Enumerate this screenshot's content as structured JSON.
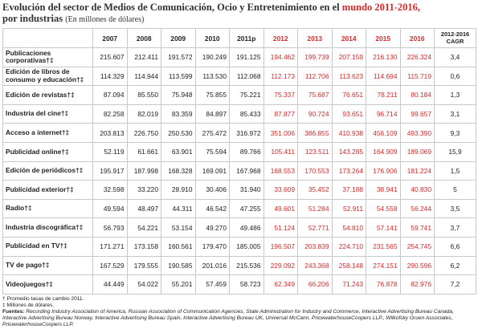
{
  "title": "Evolución del sector de Medios de Comunicación, Ocio y Entretenimiento en el",
  "title_highlight": "mundo 2011-2016,",
  "subtitle": "por industrias",
  "unit_note": "(En millones de dólares)",
  "table": {
    "columns": [
      "2007",
      "2008",
      "2009",
      "2010",
      "2011p",
      "2012",
      "2013",
      "2014",
      "2015",
      "2016",
      "2012-2016 CAGR"
    ],
    "rows": [
      {
        "label": "Publicaciones corporativas†‡",
        "values": [
          "215.607",
          "212.411",
          "191.572",
          "190.249",
          "191.125",
          "194.462",
          "199.739",
          "207.159",
          "216.130",
          "226.324",
          "3,4"
        ]
      },
      {
        "label": "Edición de libros de consumo y educación†‡",
        "values": [
          "114.329",
          "114.944",
          "113.599",
          "113.530",
          "112.068",
          "112.173",
          "112.706",
          "113.623",
          "114.694",
          "115.719",
          "0,6"
        ]
      },
      {
        "label": "Edición de revistas†‡",
        "values": [
          "87.094",
          "85.550",
          "75.948",
          "75.855",
          "75.221",
          "75.337",
          "75.687",
          "76.651",
          "78.211",
          "80.184",
          "1,3"
        ]
      },
      {
        "label": "Industria del cine†‡",
        "values": [
          "82.258",
          "82.019",
          "83.359",
          "84.897",
          "85.433",
          "87.877",
          "90.724",
          "93.651",
          "96.714",
          "99.657",
          "3,1"
        ]
      },
      {
        "label": "Acceso a internet†‡",
        "values": [
          "203.813",
          "226.750",
          "250.530",
          "275.472",
          "316.972",
          "351.006",
          "386.855",
          "410.938",
          "456.109",
          "493.390",
          "9,3"
        ]
      },
      {
        "label": "Publicidad online†‡",
        "values": [
          "52.119",
          "61.661",
          "63.901",
          "75.594",
          "89.766",
          "105.411",
          "123.511",
          "143.285",
          "164.909",
          "189.069",
          "15,9"
        ]
      },
      {
        "label": "Edición de periódicos†‡",
        "values": [
          "195.917",
          "187.998",
          "168.328",
          "169.091",
          "167.968",
          "168.553",
          "170.553",
          "173.264",
          "176.906",
          "181.224",
          "1,5"
        ]
      },
      {
        "label": "Publicidad exterior†‡",
        "values": [
          "32.598",
          "33.220",
          "28.910",
          "30.406",
          "31.940",
          "33.609",
          "35.452",
          "37.188",
          "38.941",
          "40.830",
          "5"
        ]
      },
      {
        "label": "Radio†‡",
        "values": [
          "49.594",
          "48.497",
          "44.311",
          "46.542",
          "47.255",
          "49.601",
          "51.284",
          "52.911",
          "54.558",
          "56.244",
          "3,5"
        ]
      },
      {
        "label": "Industria discográfica†‡",
        "values": [
          "56.793",
          "54.221",
          "53.154",
          "49.270",
          "49.486",
          "51.124",
          "52.771",
          "54.810",
          "57.141",
          "59.741",
          "3,7"
        ]
      },
      {
        "label": "Publicidad en TV†‡",
        "values": [
          "171.271",
          "173.158",
          "160.561",
          "179.470",
          "185.005",
          "196.507",
          "203.839",
          "224.710",
          "231.565",
          "254.745",
          "6,6"
        ]
      },
      {
        "label": "TV de pago†‡",
        "values": [
          "167.529",
          "179.555",
          "190.585",
          "201.016",
          "215.536",
          "229.092",
          "243.368",
          "258.148",
          "274.151",
          "290.596",
          "6,2"
        ]
      },
      {
        "label": "Videojuegos†‡",
        "values": [
          "44.449",
          "54.022",
          "55.201",
          "57.459",
          "58.723",
          "62.349",
          "66.206",
          "71.243",
          "76.878",
          "82.976",
          "7,2"
        ]
      }
    ]
  },
  "footnotes": [
    "† Promedio tasas de cambio 2011.",
    "‡ Millones de dólares."
  ],
  "sources_label": "Fuentes:",
  "sources": "Recording Industry Association of America, Russian Association of Communication Agencies, State Administration for Industry and Commerce, Interactive Advertising Bureau Canada, Interactive Advertising Bureau Norway, Interactive Advertising Bureau Spain, Interactive Advertising Bureau UK, Universal McCann, PricewaterhouseCoopers LLP., Wilkofsky Gruen Associates, PricewaterhouseCoopers LLP."
}
